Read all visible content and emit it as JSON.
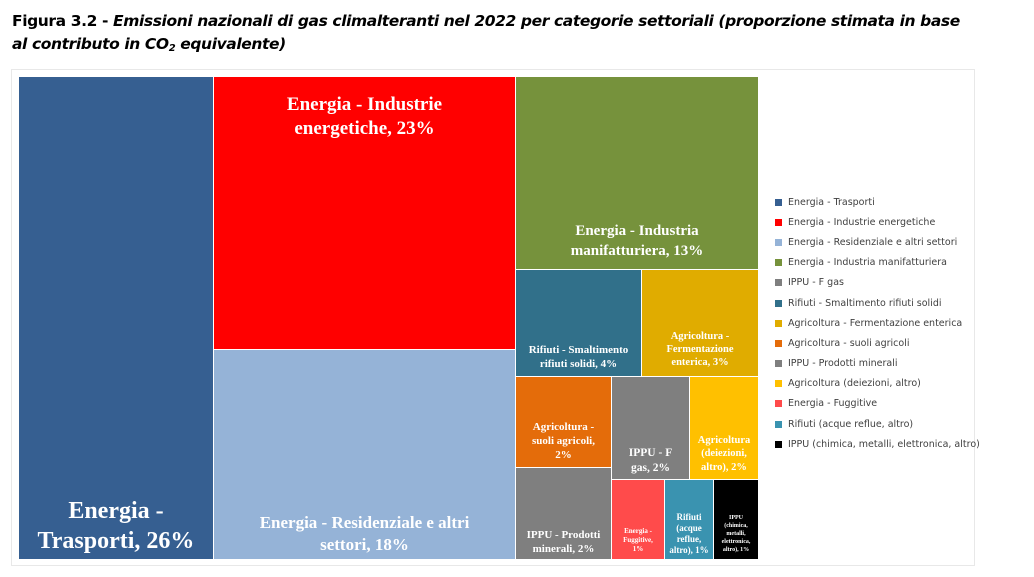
{
  "figure": {
    "label": "Figura 3.2 -",
    "title_part1": "Emissioni nazionali di gas climalteranti nel 2022 per categorie settoriali (proporzione stimata in base",
    "title_part2": "al contributo in CO",
    "title_sub": "2",
    "title_part3": " equivalente)"
  },
  "chart_data": {
    "type": "treemap",
    "title": "Emissioni nazionali di gas climalteranti nel 2022 per categorie settoriali (proporzione stimata in base al contributo in CO2 equivalente)",
    "unit": "%",
    "legend_position": "right",
    "items": [
      {
        "name": "Energia - Trasporti",
        "value": 26,
        "label": "Energia - Trasporti, 26%",
        "color": "#365f91"
      },
      {
        "name": "Energia - Industrie energetiche",
        "value": 23,
        "label": "Energia - Industrie energetiche, 23%",
        "color": "#ff0000"
      },
      {
        "name": "Energia - Residenziale e altri settori",
        "value": 18,
        "label": "Energia - Residenziale e altri settori, 18%",
        "color": "#95b3d7"
      },
      {
        "name": "Energia - Industria manifatturiera",
        "value": 13,
        "label": "Energia - Industria manifatturiera, 13%",
        "color": "#76923c"
      },
      {
        "name": "IPPU - F gas",
        "value": 2,
        "label": "IPPU - F gas, 2%",
        "color": "#7f7f7f"
      },
      {
        "name": "Rifiuti - Smaltimento rifiuti solidi",
        "value": 4,
        "label": "Rifiuti - Smaltimento rifiuti solidi, 4%",
        "color": "#31708a"
      },
      {
        "name": "Agricoltura - Fermentazione enterica",
        "value": 3,
        "label": "Agricoltura - Fermentazione enterica, 3%",
        "color": "#e0ac00"
      },
      {
        "name": "Agricoltura - suoli agricoli",
        "value": 2,
        "label": "Agricoltura - suoli agricoli, 2%",
        "color": "#e46c0a"
      },
      {
        "name": "IPPU - Prodotti minerali",
        "value": 2,
        "label": "IPPU - Prodotti minerali, 2%",
        "color": "#7f7f7f"
      },
      {
        "name": "Agricoltura (deiezioni, altro)",
        "value": 2,
        "label": "Agricoltura (deiezioni, altro), 2%",
        "color": "#ffc000"
      },
      {
        "name": "Energia - Fuggitive",
        "value": 1,
        "label": "Energia - Fuggitive, 1%",
        "color": "#ff4b4b"
      },
      {
        "name": "Rifiuti (acque reflue, altro)",
        "value": 1,
        "label": "Rifiuti (acque reflue, altro), 1%",
        "color": "#3a93b0"
      },
      {
        "name": "IPPU (chimica, metalli, elettronica, altro)",
        "value": 1,
        "label": "IPPU (chimica, metalli, elettronica, altro), 1%",
        "color": "#000000"
      }
    ]
  }
}
